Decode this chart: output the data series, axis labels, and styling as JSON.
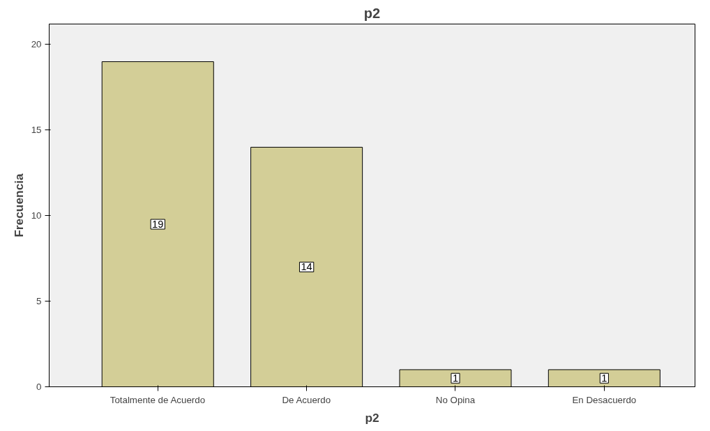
{
  "chart_data": {
    "type": "bar",
    "title": "p2",
    "xlabel": "p2",
    "ylabel": "Frecuencia",
    "categories": [
      "Totalmente de Acuerdo",
      "De Acuerdo",
      "No Opina",
      "En Desacuerdo"
    ],
    "values": [
      19,
      14,
      1,
      1
    ],
    "color": "#d3ce97",
    "ylim": [
      0,
      21.2
    ],
    "yticks": [
      0,
      5,
      10,
      15,
      20
    ],
    "grid": false,
    "data_labels": true
  }
}
